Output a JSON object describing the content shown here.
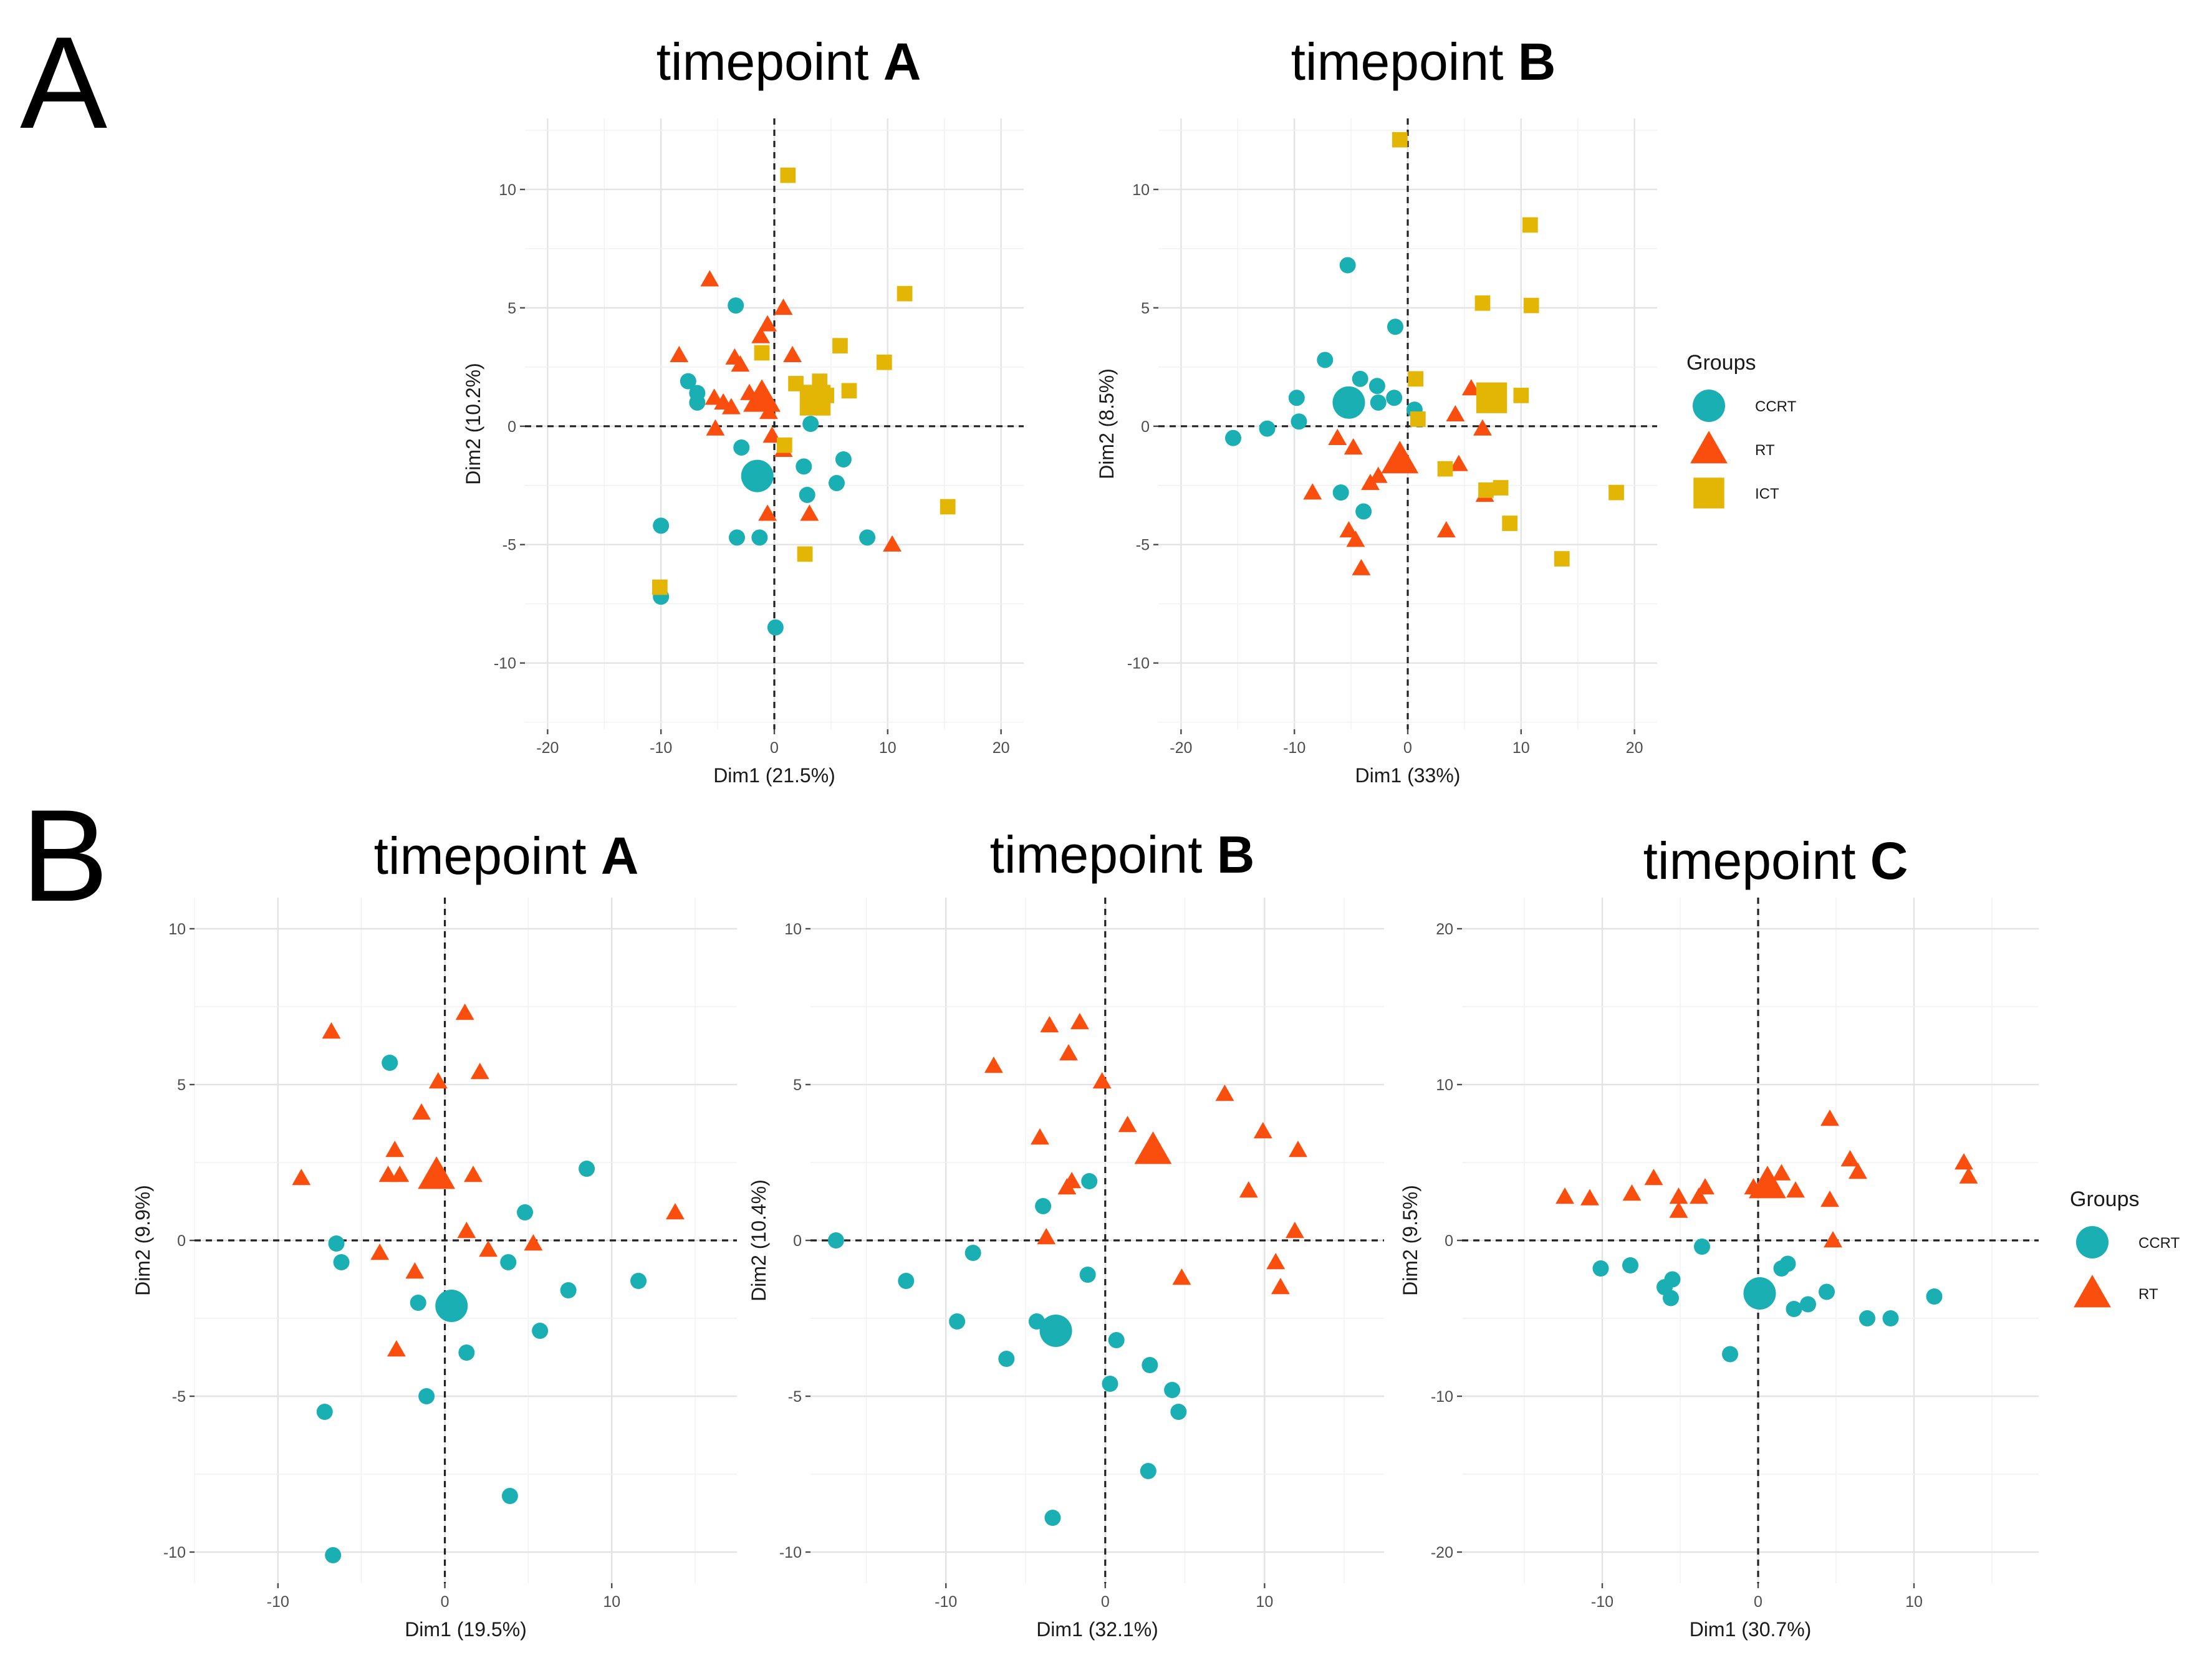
{
  "panel_letters": [
    "A",
    "B"
  ],
  "colors": {
    "CCRT": "#1aafb3",
    "RT": "#fa4e0f",
    "ICT": "#e3b505"
  },
  "legends": [
    {
      "title": "Groups",
      "items": [
        {
          "label": "CCRT",
          "shape": "circle",
          "color": "#1aafb3"
        },
        {
          "label": "RT",
          "shape": "triangle",
          "color": "#fa4e0f"
        },
        {
          "label": "ICT",
          "shape": "square",
          "color": "#e3b505"
        }
      ]
    },
    {
      "title": "Groups",
      "items": [
        {
          "label": "CCRT",
          "shape": "circle",
          "color": "#1aafb3"
        },
        {
          "label": "RT",
          "shape": "triangle",
          "color": "#fa4e0f"
        }
      ]
    }
  ],
  "chart_data": [
    {
      "type": "scatter",
      "panel": "A",
      "title": "timepoint ",
      "title_bold": "A",
      "xlabel": "Dim1 (21.5%)",
      "ylabel": "Dim2 (10.2%)",
      "xlim": [
        -22,
        22
      ],
      "ylim": [
        -12.8,
        13
      ],
      "xticks": [
        -20,
        -10,
        0,
        10,
        20
      ],
      "yticks": [
        -10,
        -5,
        0,
        5,
        10
      ],
      "centroids": [
        {
          "group": "CCRT",
          "x": -1.5,
          "y": -2.1
        },
        {
          "group": "RT",
          "x": -1.1,
          "y": 1.2
        },
        {
          "group": "ICT",
          "x": 3.6,
          "y": 1.1
        }
      ],
      "series": [
        {
          "name": "CCRT",
          "points": [
            [
              -3.4,
              5.1
            ],
            [
              -7.6,
              1.9
            ],
            [
              -6.8,
              1.4
            ],
            [
              -6.8,
              1.0
            ],
            [
              -2.9,
              -0.9
            ],
            [
              -10.0,
              -4.2
            ],
            [
              -3.3,
              -4.7
            ],
            [
              -1.3,
              -4.7
            ],
            [
              3.2,
              0.1
            ],
            [
              2.6,
              -1.7
            ],
            [
              2.9,
              -2.9
            ],
            [
              6.1,
              -1.4
            ],
            [
              5.5,
              -2.4
            ],
            [
              8.2,
              -4.7
            ],
            [
              0.1,
              -8.5
            ],
            [
              -10.0,
              -7.2
            ]
          ]
        },
        {
          "name": "RT",
          "points": [
            [
              -5.7,
              6.2
            ],
            [
              -8.4,
              3.0
            ],
            [
              -3.5,
              2.9
            ],
            [
              -3.0,
              2.6
            ],
            [
              -1.2,
              3.8
            ],
            [
              -0.6,
              4.3
            ],
            [
              0.8,
              5.0
            ],
            [
              1.6,
              3.0
            ],
            [
              -5.3,
              1.2
            ],
            [
              -4.5,
              1.0
            ],
            [
              -3.8,
              0.8
            ],
            [
              -2.2,
              1.4
            ],
            [
              -0.5,
              0.6
            ],
            [
              -0.2,
              -0.4
            ],
            [
              0.8,
              -1.0
            ],
            [
              -5.2,
              -0.1
            ],
            [
              -0.6,
              -3.7
            ],
            [
              3.1,
              -3.7
            ],
            [
              10.4,
              -5.0
            ]
          ]
        },
        {
          "name": "ICT",
          "points": [
            [
              1.2,
              10.6
            ],
            [
              11.5,
              5.6
            ],
            [
              -1.1,
              3.1
            ],
            [
              5.8,
              3.4
            ],
            [
              9.7,
              2.7
            ],
            [
              1.9,
              1.8
            ],
            [
              4.0,
              1.9
            ],
            [
              6.6,
              1.5
            ],
            [
              4.6,
              1.3
            ],
            [
              0.9,
              -0.8
            ],
            [
              15.3,
              -3.4
            ],
            [
              2.7,
              -5.4
            ],
            [
              -10.1,
              -6.8
            ]
          ]
        }
      ]
    },
    {
      "type": "scatter",
      "panel": "A",
      "title": "timepoint ",
      "title_bold": "B",
      "xlabel": "Dim1 (33%)",
      "ylabel": "Dim2 (8.5%)",
      "xlim": [
        -22,
        22
      ],
      "ylim": [
        -12.8,
        13
      ],
      "xticks": [
        -20,
        -10,
        0,
        10,
        20
      ],
      "yticks": [
        -10,
        -5,
        0,
        5,
        10
      ],
      "centroids": [
        {
          "group": "CCRT",
          "x": -5.2,
          "y": 1.0
        },
        {
          "group": "RT",
          "x": -0.7,
          "y": -1.4
        },
        {
          "group": "ICT",
          "x": 7.4,
          "y": 1.2
        }
      ],
      "series": [
        {
          "name": "CCRT",
          "points": [
            [
              -5.3,
              6.8
            ],
            [
              -1.1,
              4.2
            ],
            [
              -7.3,
              2.8
            ],
            [
              -4.2,
              2.0
            ],
            [
              -2.7,
              1.7
            ],
            [
              -9.8,
              1.2
            ],
            [
              -12.4,
              -0.1
            ],
            [
              -9.6,
              0.2
            ],
            [
              -15.4,
              -0.5
            ],
            [
              -5.9,
              -2.8
            ],
            [
              -3.9,
              -3.6
            ],
            [
              0.6,
              0.7
            ],
            [
              -1.2,
              1.2
            ],
            [
              -2.6,
              1.0
            ]
          ]
        },
        {
          "name": "RT",
          "points": [
            [
              -8.4,
              -2.8
            ],
            [
              -6.2,
              -0.5
            ],
            [
              -5.2,
              -4.4
            ],
            [
              -4.6,
              -4.8
            ],
            [
              -4.1,
              -6.0
            ],
            [
              -3.3,
              -2.4
            ],
            [
              -4.8,
              -0.9
            ],
            [
              -2.6,
              -2.1
            ],
            [
              3.4,
              -4.4
            ],
            [
              4.5,
              -1.6
            ],
            [
              4.2,
              0.5
            ],
            [
              5.6,
              1.6
            ],
            [
              6.6,
              -0.1
            ],
            [
              6.8,
              -2.9
            ],
            [
              -5.1,
              1.3
            ]
          ]
        },
        {
          "name": "ICT",
          "points": [
            [
              -0.7,
              12.1
            ],
            [
              10.8,
              8.5
            ],
            [
              6.6,
              5.2
            ],
            [
              10.9,
              5.1
            ],
            [
              0.7,
              2.0
            ],
            [
              10.0,
              1.3
            ],
            [
              6.9,
              -2.7
            ],
            [
              8.2,
              -2.6
            ],
            [
              9.0,
              -4.1
            ],
            [
              18.4,
              -2.8
            ],
            [
              13.6,
              -5.6
            ],
            [
              3.3,
              -1.8
            ],
            [
              0.9,
              0.3
            ]
          ]
        }
      ]
    },
    {
      "type": "scatter",
      "panel": "B",
      "title": "timepoint ",
      "title_bold": "A",
      "xlabel": "Dim1 (19.5%)",
      "ylabel": "Dim2 (9.9%)",
      "xlim": [
        -15,
        17.5
      ],
      "ylim": [
        -11,
        11
      ],
      "xticks": [
        -10,
        0,
        10
      ],
      "yticks": [
        -10,
        -5,
        0,
        5,
        10
      ],
      "centroids": [
        {
          "group": "CCRT",
          "x": 0.4,
          "y": -2.1
        },
        {
          "group": "RT",
          "x": -0.5,
          "y": 2.1
        }
      ],
      "series": [
        {
          "name": "CCRT",
          "points": [
            [
              -3.3,
              5.7
            ],
            [
              8.5,
              2.3
            ],
            [
              -6.5,
              -0.1
            ],
            [
              -6.2,
              -0.7
            ],
            [
              4.8,
              0.9
            ],
            [
              3.8,
              -0.7
            ],
            [
              7.4,
              -1.6
            ],
            [
              11.6,
              -1.3
            ],
            [
              -1.6,
              -2.0
            ],
            [
              1.3,
              -3.6
            ],
            [
              5.7,
              -2.9
            ],
            [
              -1.1,
              -5.0
            ],
            [
              -7.2,
              -5.5
            ],
            [
              3.9,
              -8.2
            ],
            [
              -6.7,
              -10.1
            ]
          ]
        },
        {
          "name": "RT",
          "points": [
            [
              -6.8,
              6.7
            ],
            [
              1.2,
              7.3
            ],
            [
              2.1,
              5.4
            ],
            [
              -0.4,
              5.1
            ],
            [
              -1.4,
              4.1
            ],
            [
              -3.0,
              2.9
            ],
            [
              -3.4,
              2.1
            ],
            [
              -2.7,
              2.1
            ],
            [
              1.7,
              2.1
            ],
            [
              -8.6,
              2.0
            ],
            [
              13.8,
              0.9
            ],
            [
              1.3,
              0.3
            ],
            [
              2.6,
              -0.3
            ],
            [
              5.3,
              -0.1
            ],
            [
              -3.9,
              -0.4
            ],
            [
              -1.8,
              -1.0
            ],
            [
              -2.9,
              -3.5
            ]
          ]
        }
      ]
    },
    {
      "type": "scatter",
      "panel": "B",
      "title": "timepoint ",
      "title_bold": "B",
      "xlabel": "Dim1 (32.1%)",
      "ylabel": "Dim2 (10.4%)",
      "xlim": [
        -18.5,
        17.5
      ],
      "ylim": [
        -11,
        11
      ],
      "xticks": [
        -10,
        0,
        10
      ],
      "yticks": [
        -10,
        -5,
        0,
        5,
        10
      ],
      "centroids": [
        {
          "group": "CCRT",
          "x": -3.1,
          "y": -2.9
        },
        {
          "group": "RT",
          "x": 3.0,
          "y": 2.9
        }
      ],
      "series": [
        {
          "name": "CCRT",
          "points": [
            [
              -16.9,
              0.0
            ],
            [
              -12.5,
              -1.3
            ],
            [
              -8.3,
              -0.4
            ],
            [
              -9.3,
              -2.6
            ],
            [
              -6.2,
              -3.8
            ],
            [
              -3.9,
              1.1
            ],
            [
              -1.0,
              1.9
            ],
            [
              -1.1,
              -1.1
            ],
            [
              -4.3,
              -2.6
            ],
            [
              0.7,
              -3.2
            ],
            [
              0.3,
              -4.6
            ],
            [
              2.8,
              -4.0
            ],
            [
              4.2,
              -4.8
            ],
            [
              4.6,
              -5.5
            ],
            [
              2.7,
              -7.4
            ],
            [
              -3.3,
              -8.9
            ]
          ]
        },
        {
          "name": "RT",
          "points": [
            [
              -3.5,
              6.9
            ],
            [
              -1.6,
              7.0
            ],
            [
              -2.3,
              6.0
            ],
            [
              -7.0,
              5.6
            ],
            [
              -0.2,
              5.1
            ],
            [
              7.5,
              4.7
            ],
            [
              -4.1,
              3.3
            ],
            [
              1.4,
              3.7
            ],
            [
              9.9,
              3.5
            ],
            [
              12.1,
              2.9
            ],
            [
              -2.1,
              1.9
            ],
            [
              -2.4,
              1.7
            ],
            [
              9.0,
              1.6
            ],
            [
              11.9,
              0.3
            ],
            [
              -3.7,
              0.1
            ],
            [
              10.7,
              -0.7
            ],
            [
              11.0,
              -1.5
            ],
            [
              4.8,
              -1.2
            ]
          ]
        }
      ]
    },
    {
      "type": "scatter",
      "panel": "B",
      "title": "timepoint ",
      "title_bold": "C",
      "xlabel": "Dim1 (30.7%)",
      "ylabel": "Dim2 (9.5%)",
      "xlim": [
        -19,
        18
      ],
      "ylim": [
        -22,
        22
      ],
      "xticks": [
        -10,
        0,
        10
      ],
      "yticks": [
        -20,
        -10,
        0,
        10,
        20
      ],
      "centroids": [
        {
          "group": "CCRT",
          "x": 0.1,
          "y": -3.4
        },
        {
          "group": "RT",
          "x": 0.6,
          "y": 3.6
        }
      ],
      "series": [
        {
          "name": "CCRT",
          "points": [
            [
              -10.1,
              -1.8
            ],
            [
              -8.2,
              -1.6
            ],
            [
              -3.6,
              -0.4
            ],
            [
              -6.0,
              -3.0
            ],
            [
              -5.5,
              -2.5
            ],
            [
              -5.6,
              -3.7
            ],
            [
              1.5,
              -1.8
            ],
            [
              1.9,
              -1.5
            ],
            [
              3.2,
              -4.1
            ],
            [
              2.3,
              -4.4
            ],
            [
              4.4,
              -3.3
            ],
            [
              7.0,
              -5.0
            ],
            [
              8.5,
              -5.0
            ],
            [
              11.3,
              -3.6
            ],
            [
              -1.8,
              -7.3
            ]
          ]
        },
        {
          "name": "RT",
          "points": [
            [
              -12.4,
              2.8
            ],
            [
              -10.8,
              2.7
            ],
            [
              -8.1,
              3.0
            ],
            [
              -6.7,
              4.0
            ],
            [
              -5.1,
              2.8
            ],
            [
              -5.1,
              1.9
            ],
            [
              -3.8,
              2.8
            ],
            [
              -3.4,
              3.4
            ],
            [
              -0.3,
              3.4
            ],
            [
              1.5,
              4.3
            ],
            [
              2.4,
              3.2
            ],
            [
              4.6,
              7.8
            ],
            [
              5.9,
              5.2
            ],
            [
              6.4,
              4.4
            ],
            [
              4.6,
              2.6
            ],
            [
              4.8,
              0.0
            ],
            [
              13.2,
              5.0
            ],
            [
              13.5,
              4.1
            ]
          ]
        }
      ]
    }
  ]
}
